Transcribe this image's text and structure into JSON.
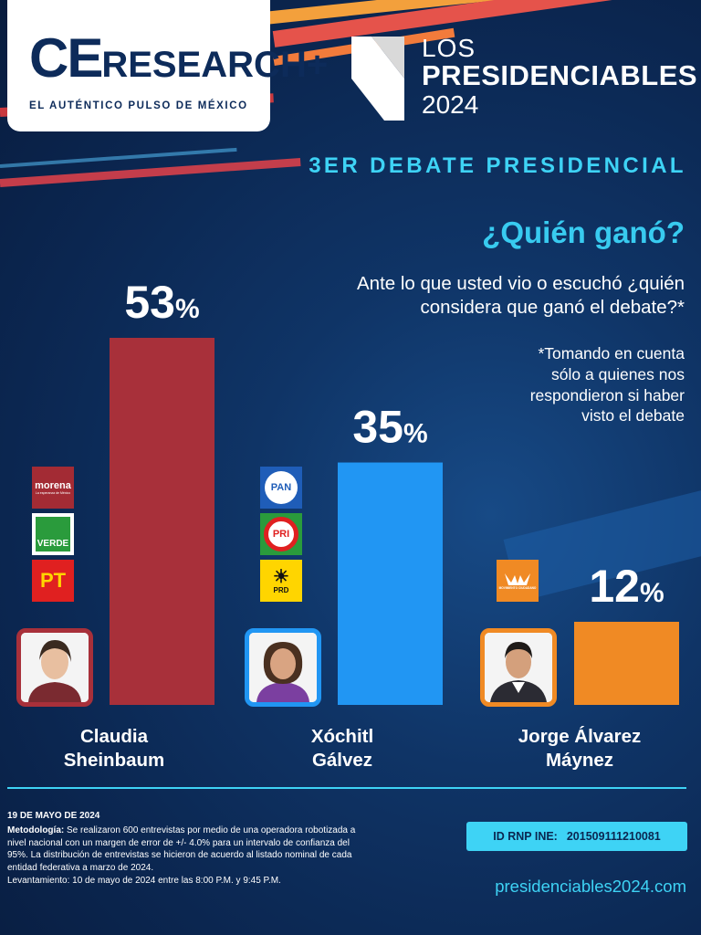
{
  "brand": {
    "logo_ce": "CE",
    "logo_rest": "RESEARCH",
    "logo_mark": "+",
    "tagline": "EL AUTÉNTICO PULSO DE MÉXICO"
  },
  "series": {
    "line1": "LOS",
    "line2": "PRESIDENCIABLES",
    "line3": "2024"
  },
  "debate_title": "3ER DEBATE PRESIDENCIAL",
  "question": "¿Quién ganó?",
  "subquestion_line1": "Ante lo que usted vio o escuchó ¿quién",
  "subquestion_line2": "considera que ganó el debate?*",
  "note_line1": "*Tomando en cuenta",
  "note_line2": "sólo a quienes nos",
  "note_line3": "respondieron si haber",
  "note_line4": "visto el debate",
  "chart_data": {
    "type": "bar",
    "categories": [
      "Claudia Sheinbaum",
      "Xóchitl Gálvez",
      "Jorge Álvarez Máynez"
    ],
    "values": [
      53,
      35,
      12
    ],
    "value_labels": [
      "53%",
      "35%",
      "12%"
    ],
    "colors": [
      "#a8303a",
      "#2196f3",
      "#f08a24"
    ],
    "ylim": [
      0,
      53
    ]
  },
  "candidates": [
    {
      "name_line1": "Claudia",
      "name_line2": "Sheinbaum",
      "parties": [
        {
          "icon": "morena-logo-icon",
          "label": "morena",
          "sub": "La esperanza de México",
          "color": "#a32b34"
        },
        {
          "icon": "verde-logo-icon",
          "label": "VERDE",
          "color": "#2a9b3c"
        },
        {
          "icon": "pt-logo-icon",
          "label": "PT",
          "color": "#e02020"
        }
      ],
      "frame_color": "#a8303a"
    },
    {
      "name_line1": "Xóchitl",
      "name_line2": "Gálvez",
      "parties": [
        {
          "icon": "pan-logo-icon",
          "label": "PAN",
          "color": "#1f5db8"
        },
        {
          "icon": "pri-logo-icon",
          "label": "PRI",
          "color": "#ffffff"
        },
        {
          "icon": "prd-logo-icon",
          "label": "PRD",
          "color": "#ffd500"
        }
      ],
      "frame_color": "#2196f3"
    },
    {
      "name_line1": "Jorge Álvarez",
      "name_line2": "Máynez",
      "parties": [
        {
          "icon": "movimiento-ciudadano-logo-icon",
          "label": "MOVIMIENTO CIUDADANO",
          "color": "#f08a24"
        }
      ],
      "frame_color": "#f08a24"
    }
  ],
  "footer": {
    "date": "19 DE MAYO DE 2024",
    "method_label": "Metodología:",
    "method_text": " Se realizaron 600 entrevistas por medio de una operadora robotizada a nivel nacional con un margen de error de +/- 4.0% para un intervalo de confianza del 95%. La distribución de entrevistas se hicieron de acuerdo al listado nominal de cada entidad federativa a marzo de 2024.",
    "survey_text": "Levantamiento: 10 de mayo de 2024 entre las 8:00 P.M. y 9:45 P.M.",
    "rnp_label": "ID RNP INE:",
    "rnp_value": "201509111210081",
    "website": "presidenciables2024.com"
  }
}
